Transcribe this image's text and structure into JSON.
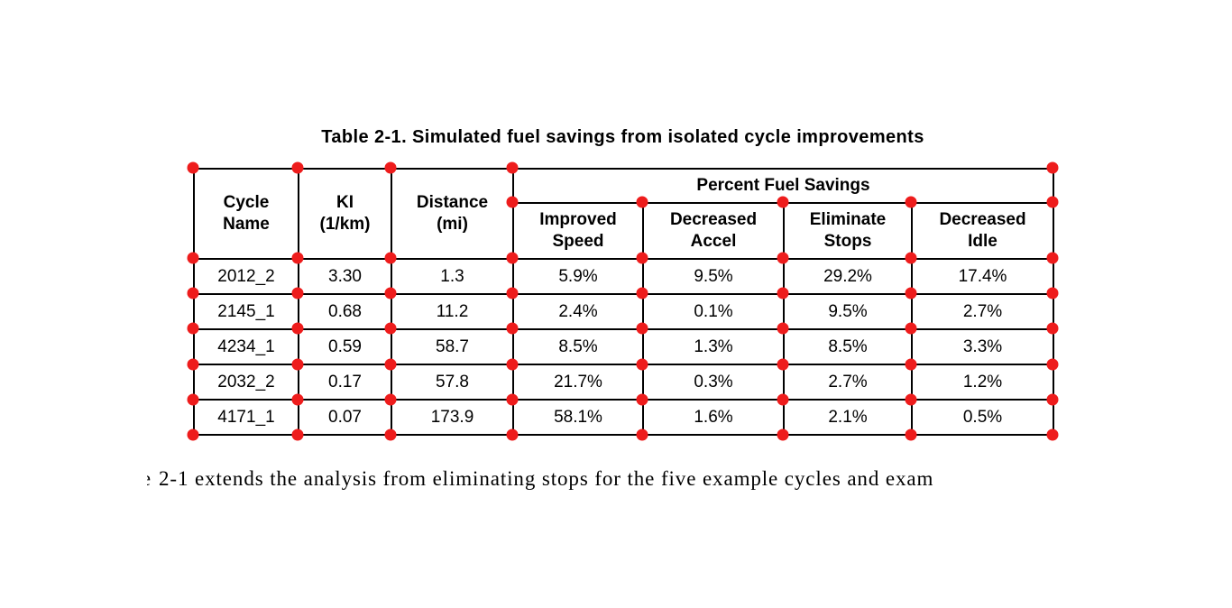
{
  "caption": "Table 2-1. Simulated fuel savings from isolated cycle improvements",
  "table": {
    "column_headers": {
      "cycle_name": "Cycle\nName",
      "ki": "KI\n(1/km)",
      "distance": "Distance\n(mi)",
      "group": "Percent Fuel Savings",
      "subcolumns": [
        "Improved\nSpeed",
        "Decreased\nAccel",
        "Eliminate\nStops",
        "Decreased\nIdle"
      ]
    },
    "rows": [
      [
        "2012_2",
        "3.30",
        "1.3",
        "5.9%",
        "9.5%",
        "29.2%",
        "17.4%"
      ],
      [
        "2145_1",
        "0.68",
        "11.2",
        "2.4%",
        "0.1%",
        "9.5%",
        "2.7%"
      ],
      [
        "4234_1",
        "0.59",
        "58.7",
        "8.5%",
        "1.3%",
        "8.5%",
        "3.3%"
      ],
      [
        "2032_2",
        "0.17",
        "57.8",
        "21.7%",
        "0.3%",
        "2.7%",
        "1.2%"
      ],
      [
        "4171_1",
        "0.07",
        "173.9",
        "58.1%",
        "1.6%",
        "2.1%",
        "0.5%"
      ]
    ]
  },
  "body_text": {
    "clipped_fragment": "e",
    "visible_text": "2-1 extends the analysis from eliminating stops for the five example cycles and exam"
  },
  "annotation": {
    "marker_color": "#ee1c1c"
  },
  "colors": {
    "border": "#000000",
    "background": "#ffffff",
    "text": "#000000"
  }
}
